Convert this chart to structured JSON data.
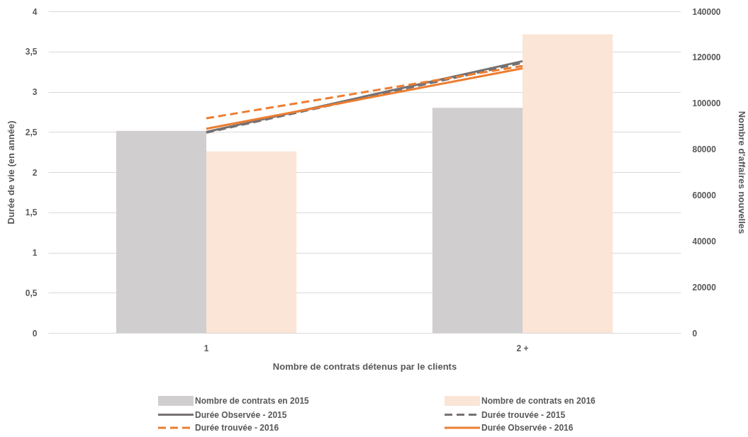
{
  "chart_data": {
    "type": "bar",
    "xlabel": "Nombre de contrats détenus par le clients",
    "ylabel": "Durée de vie (en année)",
    "y2label": "Nombre d'affaires nouvelles",
    "categories": [
      "1",
      "2 +"
    ],
    "series": [
      {
        "name": "Nombre de contrats en 2015",
        "axis": "y2",
        "color": "#d0cece",
        "values": [
          88000,
          98000
        ]
      },
      {
        "name": "Nombre de contrats en 2016",
        "axis": "y2",
        "color": "#fbe5d6",
        "values": [
          79000,
          130000
        ]
      },
      {
        "name": "Durée Observée - 2015",
        "type": "line",
        "color": "#767171",
        "line_style": "solid",
        "values": [
          2.5,
          3.38
        ]
      },
      {
        "name": "Durée trouvée - 2015",
        "type": "line",
        "color": "#767171",
        "line_style": "dashed",
        "values": [
          2.49,
          3.36
        ]
      },
      {
        "name": "Durée trouvée - 2016",
        "type": "line",
        "color": "#ed7d31",
        "line_style": "dashed",
        "values": [
          2.67,
          3.32
        ]
      },
      {
        "name": "Durée Observée - 2016",
        "type": "line",
        "color": "#ed7d31",
        "line_style": "solid",
        "values": [
          2.54,
          3.29
        ]
      }
    ],
    "ylim": [
      0,
      4
    ],
    "yticks": [
      0,
      {
        "value": 0.5,
        "label": "0,5"
      },
      1,
      {
        "value": 1.5,
        "label": "1,5"
      },
      2,
      {
        "value": 2.5,
        "label": "2,5"
      },
      3,
      {
        "value": 3.5,
        "label": "3,5"
      },
      4
    ],
    "y2lim": [
      0,
      140000
    ],
    "y2ticks": [
      0,
      20000,
      40000,
      60000,
      80000,
      100000,
      120000,
      140000
    ],
    "grid": "y",
    "legend": "bottom"
  }
}
